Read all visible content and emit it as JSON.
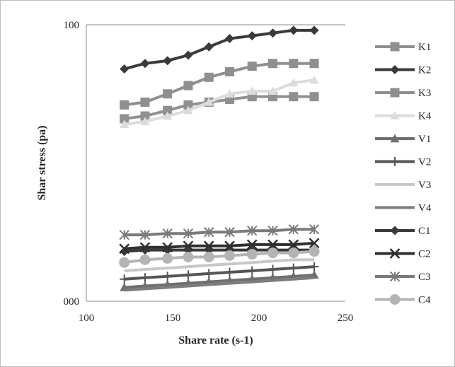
{
  "chart_data": {
    "type": "line",
    "xlabel": "Share rate (s-1)",
    "ylabel": "Shar stress (pa)",
    "xlim": [
      100,
      250
    ],
    "ylim": [
      0,
      100
    ],
    "x_ticks": [
      "100",
      "150",
      "200",
      "250"
    ],
    "y_ticks": [
      "000",
      "100"
    ],
    "grid": false,
    "legend_position": "right",
    "x": [
      122,
      134,
      147,
      159,
      171,
      183,
      196,
      208,
      220,
      232
    ],
    "series": [
      {
        "name": "K1",
        "color": "#909090",
        "marker": "square",
        "values": [
          66,
          67,
          69,
          71,
          72,
          73,
          74,
          74,
          74,
          74
        ]
      },
      {
        "name": "K2",
        "color": "#3a3a3a",
        "marker": "diamond",
        "values": [
          84,
          86,
          87,
          89,
          92,
          95,
          96,
          97,
          98,
          98
        ]
      },
      {
        "name": "K3",
        "color": "#8f8f8f",
        "marker": "square",
        "values": [
          71,
          72,
          75,
          78,
          81,
          83,
          85,
          86,
          86,
          86
        ]
      },
      {
        "name": "K4",
        "color": "#dcdcdc",
        "marker": "triangle",
        "values": [
          64,
          65,
          67,
          69,
          72,
          75,
          76,
          76,
          79,
          80
        ]
      },
      {
        "name": "V1",
        "color": "#6f6f6f",
        "marker": "triangle",
        "values": [
          5,
          5.5,
          6,
          6.5,
          7,
          7.5,
          8,
          8.5,
          9,
          9.5
        ]
      },
      {
        "name": "V2",
        "color": "#555555",
        "marker": "plus",
        "values": [
          8,
          8.5,
          9,
          9.5,
          10,
          10.5,
          11,
          11.5,
          12,
          12.5
        ]
      },
      {
        "name": "V3",
        "color": "#c8c8c8",
        "marker": "none",
        "values": [
          11,
          11.5,
          12,
          12.5,
          13,
          13.5,
          14,
          14.5,
          15,
          15
        ]
      },
      {
        "name": "V4",
        "color": "#7d7d7d",
        "marker": "none",
        "values": [
          4,
          4.5,
          5,
          5.5,
          6,
          6.5,
          7,
          7.5,
          8,
          8.5
        ]
      },
      {
        "name": "C1",
        "color": "#3a3a3a",
        "marker": "diamond",
        "values": [
          18,
          18.5,
          18.5,
          18.5,
          18.5,
          18.5,
          18.5,
          18.5,
          18.5,
          18.5
        ]
      },
      {
        "name": "C2",
        "color": "#2f2f2f",
        "marker": "x",
        "values": [
          19,
          19.5,
          19.5,
          20,
          20,
          20,
          20.5,
          20.5,
          20.5,
          21
        ]
      },
      {
        "name": "C3",
        "color": "#7a7a7a",
        "marker": "asterisk",
        "values": [
          24,
          24,
          24.5,
          24.5,
          25,
          25,
          25.5,
          25.5,
          26,
          26
        ]
      },
      {
        "name": "C4",
        "color": "#b4b4b4",
        "marker": "circle",
        "values": [
          14,
          15,
          15.5,
          16,
          16,
          16.5,
          17,
          17.5,
          17.5,
          18
        ]
      }
    ]
  }
}
